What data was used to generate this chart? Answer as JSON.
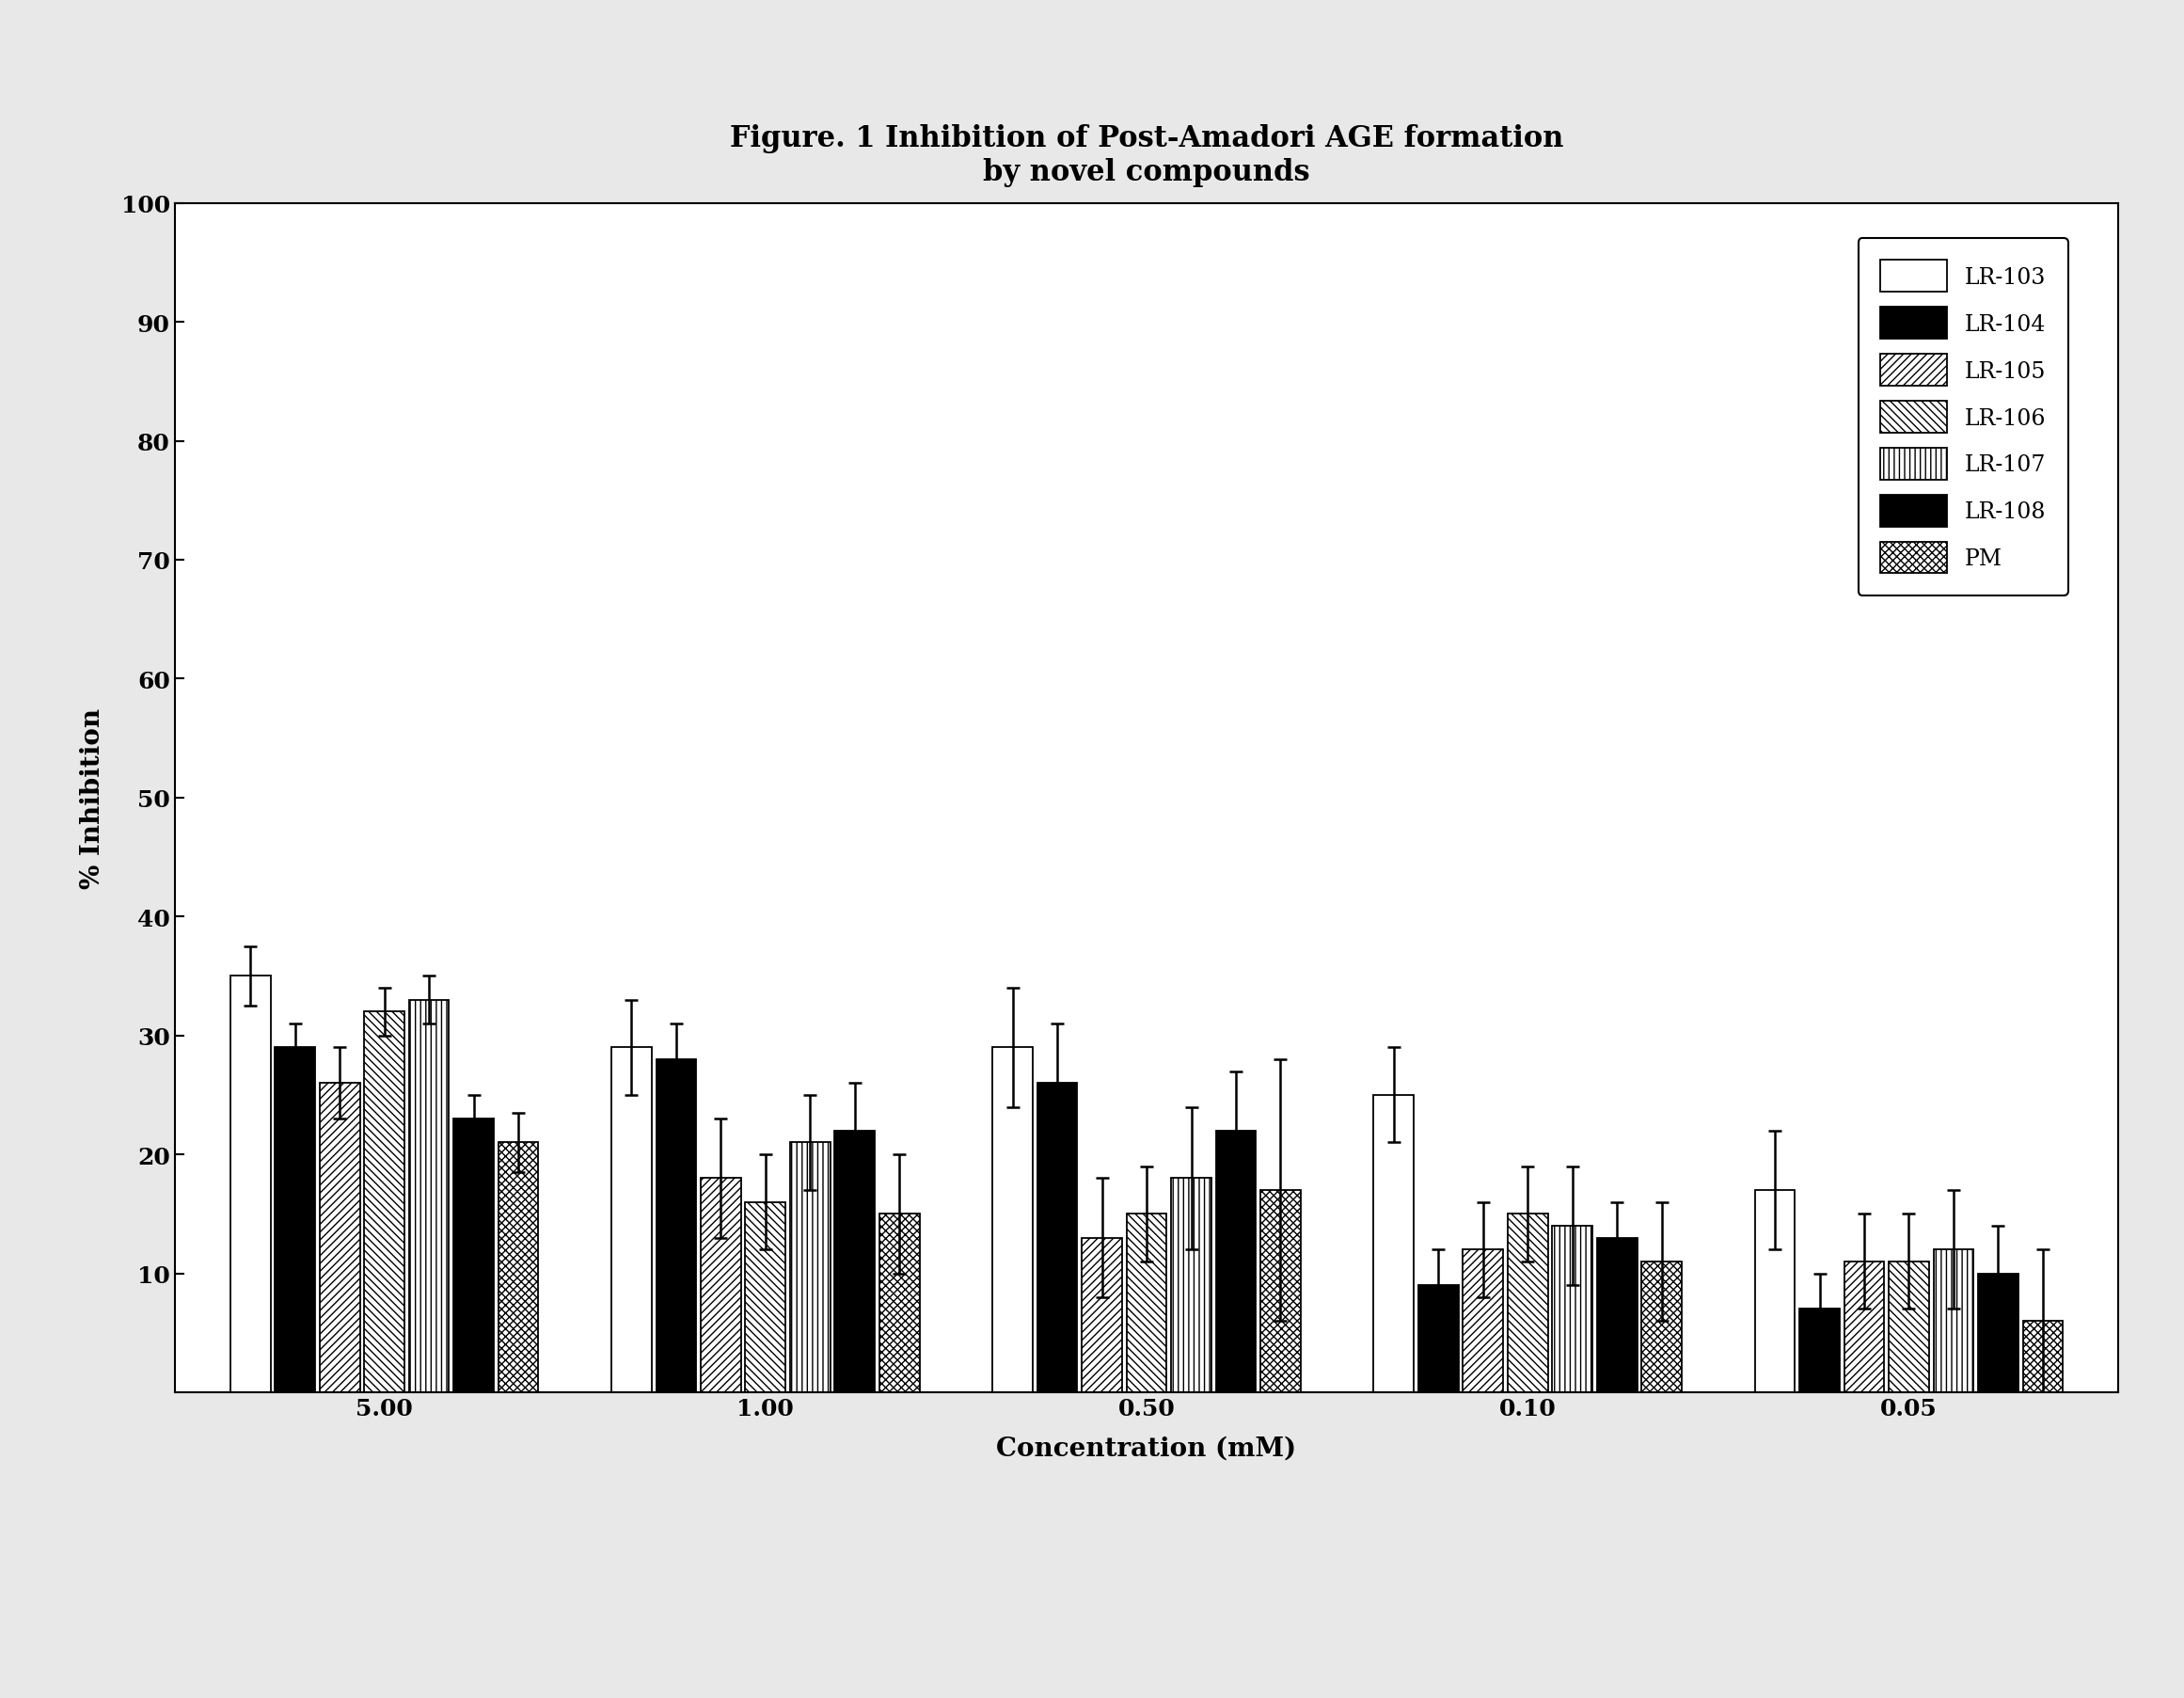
{
  "title_line1": "Figure. 1 Inhibition of Post-Amadori AGE formation",
  "title_line2": "by novel compounds",
  "xlabel": "Concentration (mM)",
  "ylabel": "% Inhibition",
  "ylim": [
    0,
    100
  ],
  "yticks": [
    10,
    20,
    30,
    40,
    50,
    60,
    70,
    80,
    90,
    100
  ],
  "x_labels": [
    "5.00",
    "1.00",
    "0.50",
    "0.10",
    "0.05"
  ],
  "series": [
    "LR-103",
    "LR-104",
    "LR-105",
    "LR-106",
    "LR-107",
    "LR-108",
    "PM"
  ],
  "bar_values": {
    "5.00": [
      35,
      29,
      26,
      32,
      33,
      23,
      21
    ],
    "1.00": [
      29,
      28,
      18,
      16,
      21,
      22,
      15
    ],
    "0.50": [
      29,
      26,
      13,
      15,
      18,
      22,
      17
    ],
    "0.10": [
      25,
      9,
      12,
      15,
      14,
      13,
      11
    ],
    "0.05": [
      17,
      7,
      11,
      11,
      12,
      10,
      6
    ]
  },
  "bar_errors": {
    "5.00": [
      2.5,
      2.0,
      3.0,
      2.0,
      2.0,
      2.0,
      2.5
    ],
    "1.00": [
      4.0,
      3.0,
      5.0,
      4.0,
      4.0,
      4.0,
      5.0
    ],
    "0.50": [
      5.0,
      5.0,
      5.0,
      4.0,
      6.0,
      5.0,
      11.0
    ],
    "0.10": [
      4.0,
      3.0,
      4.0,
      4.0,
      5.0,
      3.0,
      5.0
    ],
    "0.05": [
      5.0,
      3.0,
      4.0,
      4.0,
      5.0,
      4.0,
      6.0
    ]
  },
  "background_color": "#f0f0f0",
  "title_fontsize": 22,
  "axis_label_fontsize": 20,
  "tick_fontsize": 18,
  "legend_fontsize": 17
}
